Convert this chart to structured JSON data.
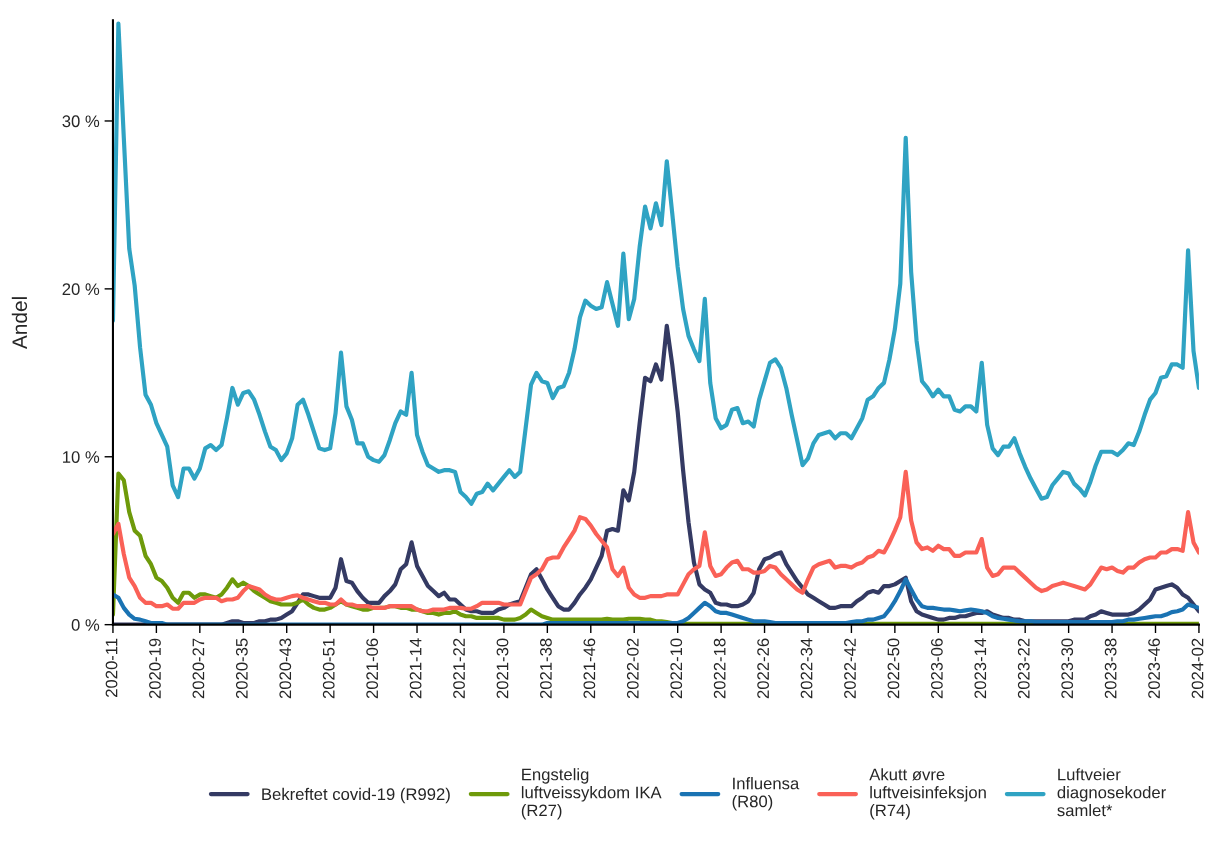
{
  "chart_data": {
    "type": "line",
    "ylabel": "Andel",
    "ylim": [
      0,
      36
    ],
    "grid": false,
    "legend": "bottom",
    "categories": [
      "2020-11",
      null,
      null,
      null,
      null,
      null,
      null,
      null,
      "2020-19",
      null,
      null,
      null,
      null,
      null,
      null,
      null,
      "2020-27",
      null,
      null,
      null,
      null,
      null,
      null,
      null,
      "2020-35",
      null,
      null,
      null,
      null,
      null,
      null,
      null,
      "2020-43",
      null,
      null,
      null,
      null,
      null,
      null,
      null,
      "2020-51",
      null,
      null,
      null,
      null,
      null,
      null,
      null,
      "2021-06",
      null,
      null,
      null,
      null,
      null,
      null,
      null,
      "2021-14",
      null,
      null,
      null,
      null,
      null,
      null,
      null,
      "2021-22",
      null,
      null,
      null,
      null,
      null,
      null,
      null,
      "2021-30",
      null,
      null,
      null,
      null,
      null,
      null,
      null,
      "2021-38",
      null,
      null,
      null,
      null,
      null,
      null,
      null,
      "2021-46",
      null,
      null,
      null,
      null,
      null,
      null,
      null,
      "2022-02",
      null,
      null,
      null,
      null,
      null,
      null,
      null,
      "2022-10",
      null,
      null,
      null,
      null,
      null,
      null,
      null,
      "2022-18",
      null,
      null,
      null,
      null,
      null,
      null,
      null,
      "2022-26",
      null,
      null,
      null,
      null,
      null,
      null,
      null,
      "2022-34",
      null,
      null,
      null,
      null,
      null,
      null,
      null,
      "2022-42",
      null,
      null,
      null,
      null,
      null,
      null,
      null,
      "2022-50",
      null,
      null,
      null,
      null,
      null,
      null,
      null,
      "2023-06",
      null,
      null,
      null,
      null,
      null,
      null,
      null,
      "2023-14",
      null,
      null,
      null,
      null,
      null,
      null,
      null,
      "2023-22",
      null,
      null,
      null,
      null,
      null,
      null,
      null,
      "2023-30",
      null,
      null,
      null,
      null,
      null,
      null,
      null,
      "2023-38",
      null,
      null,
      null,
      null,
      null,
      null,
      null,
      "2023-46",
      null,
      null,
      null,
      null,
      null,
      null,
      null,
      "2024-02"
    ],
    "yticks": [
      {
        "value": 0,
        "label": "0 %"
      },
      {
        "value": 10,
        "label": "10 %"
      },
      {
        "value": 20,
        "label": "20 %"
      },
      {
        "value": 30,
        "label": "30 %"
      }
    ],
    "series": [
      {
        "name": "Bekreftet covid-19 (R992)",
        "color": "#343a63",
        "values": [
          0,
          0,
          0,
          0,
          0,
          0,
          0,
          0,
          0,
          0,
          0,
          0,
          0,
          0,
          0,
          0,
          0,
          0,
          0,
          0,
          0,
          0.1,
          0.2,
          0.2,
          0.1,
          0.1,
          0.1,
          0.2,
          0.2,
          0.3,
          0.3,
          0.4,
          0.6,
          0.8,
          1.3,
          1.8,
          1.8,
          1.7,
          1.6,
          1.6,
          1.6,
          2.2,
          3.9,
          2.6,
          2.5,
          2.0,
          1.6,
          1.3,
          1.3,
          1.3,
          1.7,
          2.0,
          2.4,
          3.3,
          3.6,
          4.9,
          3.5,
          2.9,
          2.3,
          2.0,
          1.7,
          1.9,
          1.5,
          1.5,
          1.2,
          0.9,
          0.8,
          0.8,
          0.7,
          0.7,
          0.7,
          0.9,
          1.0,
          1.2,
          1.3,
          1.4,
          2.2,
          3.0,
          3.3,
          2.7,
          2.1,
          1.6,
          1.1,
          0.9,
          0.9,
          1.3,
          1.8,
          2.2,
          2.7,
          3.4,
          4.1,
          5.6,
          5.7,
          5.6,
          8.0,
          7.4,
          9.1,
          12.0,
          14.7,
          14.5,
          15.5,
          14.6,
          17.8,
          15.5,
          12.7,
          9.2,
          6.1,
          3.7,
          2.4,
          2.1,
          1.9,
          1.3,
          1.2,
          1.2,
          1.1,
          1.1,
          1.2,
          1.4,
          1.9,
          3.3,
          3.9,
          4.0,
          4.2,
          4.3,
          3.6,
          3.1,
          2.6,
          2.2,
          1.8,
          1.6,
          1.4,
          1.2,
          1.0,
          1.0,
          1.1,
          1.1,
          1.1,
          1.4,
          1.6,
          1.9,
          2.0,
          1.9,
          2.3,
          2.3,
          2.4,
          2.6,
          2.8,
          1.4,
          0.8,
          0.6,
          0.5,
          0.4,
          0.3,
          0.3,
          0.4,
          0.4,
          0.5,
          0.5,
          0.6,
          0.7,
          0.7,
          0.8,
          0.6,
          0.5,
          0.4,
          0.4,
          0.3,
          0.3,
          0.2,
          0.2,
          0.2,
          0.2,
          0.2,
          0.2,
          0.2,
          0.2,
          0.2,
          0.3,
          0.3,
          0.3,
          0.5,
          0.6,
          0.8,
          0.7,
          0.6,
          0.6,
          0.6,
          0.6,
          0.7,
          0.9,
          1.2,
          1.5,
          2.1,
          2.2,
          2.3,
          2.4,
          2.2,
          1.8,
          1.6,
          1.2,
          0.8
        ]
      },
      {
        "name": "Engstelig\nluftveissykdom IKA\n(R27)",
        "color": "#6e9a0a",
        "values": [
          0.6,
          9.0,
          8.6,
          6.7,
          5.6,
          5.3,
          4.1,
          3.6,
          2.8,
          2.6,
          2.2,
          1.6,
          1.3,
          1.9,
          1.9,
          1.6,
          1.8,
          1.8,
          1.7,
          1.6,
          1.8,
          2.2,
          2.7,
          2.3,
          2.5,
          2.3,
          2.0,
          1.8,
          1.6,
          1.4,
          1.3,
          1.2,
          1.2,
          1.2,
          1.3,
          1.5,
          1.2,
          1.0,
          0.9,
          0.9,
          1.0,
          1.2,
          1.4,
          1.2,
          1.1,
          1.0,
          0.9,
          0.9,
          1.0,
          1.0,
          1.0,
          1.1,
          1.1,
          1.0,
          1.0,
          0.9,
          0.9,
          0.8,
          0.7,
          0.7,
          0.6,
          0.7,
          0.7,
          0.8,
          0.6,
          0.5,
          0.5,
          0.4,
          0.4,
          0.4,
          0.4,
          0.4,
          0.3,
          0.3,
          0.3,
          0.4,
          0.6,
          0.9,
          0.7,
          0.5,
          0.4,
          0.3,
          0.3,
          0.3,
          0.3,
          0.3,
          0.3,
          0.3,
          0.3,
          0.3,
          0.3,
          0.35,
          0.3,
          0.3,
          0.3,
          0.35,
          0.35,
          0.35,
          0.3,
          0.3,
          0.2,
          0.2,
          0.15,
          0.1,
          0.1,
          0.05,
          0.05,
          0.05,
          0.05,
          0.05,
          0.05,
          0.05,
          0.05,
          0.05,
          0.05,
          0.05,
          0.05,
          0.05,
          0.05,
          0.05,
          0.05,
          0.05,
          0.05,
          0.05,
          0.05,
          0.05,
          0.05,
          0.05,
          0.05,
          0.05,
          0.05,
          0.05,
          0.05,
          0.05,
          0.05,
          0.05,
          0.05,
          0.05,
          0.05,
          0.05,
          0.05,
          0.05,
          0.05,
          0.05,
          0.05,
          0.05,
          0.05,
          0.05,
          0.05,
          0.05,
          0.05,
          0.05,
          0.05,
          0.05,
          0.05,
          0.05,
          0.05,
          0.05,
          0.05,
          0.05,
          0.05,
          0.05,
          0.05,
          0.05,
          0.05,
          0.05,
          0.05,
          0.05,
          0.05,
          0.05,
          0.05,
          0.05,
          0.05,
          0.05,
          0.05,
          0.05,
          0.05,
          0.05,
          0.05,
          0.05,
          0.05,
          0.05,
          0.05,
          0.05,
          0.05,
          0.05,
          0.05,
          0.05,
          0.05,
          0.05,
          0.05,
          0.05,
          0.05,
          0.05,
          0.05,
          0.05,
          0.05,
          0.05,
          0.05,
          0.05,
          0.05
        ]
      },
      {
        "name": "Influensa\n(R80)",
        "color": "#1a73b3",
        "values": [
          1.8,
          1.6,
          1.0,
          0.6,
          0.35,
          0.3,
          0.2,
          0.1,
          0.1,
          0.1,
          0,
          0,
          0,
          0,
          0,
          0,
          0,
          0,
          0,
          0,
          0,
          0,
          0,
          0,
          0,
          0,
          0,
          0,
          0,
          0,
          0,
          0,
          0,
          0,
          0,
          0,
          0,
          0,
          0,
          0,
          0,
          0,
          0,
          0,
          0,
          0,
          0,
          0,
          0,
          0,
          0,
          0,
          0,
          0,
          0,
          0,
          0,
          0,
          0,
          0,
          0,
          0,
          0,
          0,
          0,
          0,
          0,
          0,
          0,
          0,
          0,
          0,
          0,
          0,
          0,
          0,
          0,
          0,
          0,
          0,
          0.1,
          0.1,
          0.1,
          0.1,
          0.1,
          0.1,
          0.1,
          0.1,
          0.1,
          0.1,
          0.1,
          0.1,
          0.1,
          0.1,
          0.1,
          0.1,
          0.1,
          0.1,
          0.1,
          0.1,
          0.1,
          0.1,
          0.1,
          0.1,
          0.1,
          0.2,
          0.4,
          0.7,
          1.0,
          1.3,
          1.1,
          0.8,
          0.7,
          0.7,
          0.6,
          0.5,
          0.4,
          0.3,
          0.2,
          0.2,
          0.2,
          0.15,
          0.1,
          0.1,
          0.1,
          0.1,
          0.1,
          0.1,
          0.1,
          0.1,
          0.1,
          0.1,
          0.1,
          0.1,
          0.1,
          0.1,
          0.15,
          0.2,
          0.2,
          0.3,
          0.3,
          0.4,
          0.5,
          0.9,
          1.4,
          2.0,
          2.7,
          2.1,
          1.5,
          1.1,
          1.0,
          1.0,
          0.95,
          0.9,
          0.9,
          0.85,
          0.8,
          0.85,
          0.9,
          0.85,
          0.8,
          0.7,
          0.5,
          0.4,
          0.35,
          0.3,
          0.25,
          0.2,
          0.2,
          0.2,
          0.15,
          0.15,
          0.15,
          0.15,
          0.15,
          0.15,
          0.15,
          0.15,
          0.15,
          0.15,
          0.15,
          0.15,
          0.15,
          0.15,
          0.15,
          0.2,
          0.2,
          0.3,
          0.3,
          0.35,
          0.4,
          0.45,
          0.5,
          0.5,
          0.6,
          0.75,
          0.8,
          0.9,
          1.2,
          1.1,
          1.0
        ]
      },
      {
        "name": "Akutt øvre\nluftveisinfeksjon\n(R74)",
        "color": "#fa6157",
        "values": [
          5.4,
          6.0,
          4.2,
          2.8,
          2.3,
          1.6,
          1.3,
          1.3,
          1.1,
          1.1,
          1.2,
          0.95,
          0.95,
          1.3,
          1.3,
          1.3,
          1.5,
          1.6,
          1.6,
          1.6,
          1.4,
          1.5,
          1.5,
          1.6,
          2.0,
          2.3,
          2.2,
          2.1,
          1.8,
          1.6,
          1.5,
          1.5,
          1.6,
          1.7,
          1.75,
          1.6,
          1.5,
          1.4,
          1.3,
          1.3,
          1.2,
          1.2,
          1.5,
          1.2,
          1.2,
          1.1,
          1.1,
          1.1,
          1.0,
          1.0,
          1.0,
          1.1,
          1.1,
          1.1,
          1.1,
          1.1,
          0.9,
          0.8,
          0.8,
          0.9,
          0.9,
          0.9,
          1.0,
          1.0,
          1.0,
          0.95,
          0.95,
          1.1,
          1.3,
          1.3,
          1.3,
          1.3,
          1.2,
          1.2,
          1.2,
          1.2,
          2.0,
          2.8,
          3.0,
          3.3,
          3.9,
          4.0,
          4.0,
          4.6,
          5.1,
          5.6,
          6.4,
          6.3,
          5.9,
          5.4,
          5.0,
          4.6,
          3.3,
          2.9,
          3.4,
          2.2,
          1.8,
          1.6,
          1.6,
          1.7,
          1.7,
          1.7,
          1.8,
          1.8,
          1.8,
          2.4,
          3.0,
          3.3,
          3.5,
          5.5,
          3.5,
          2.9,
          3.0,
          3.4,
          3.7,
          3.8,
          3.3,
          3.3,
          3.1,
          3.1,
          3.2,
          3.5,
          3.4,
          3.0,
          2.7,
          2.4,
          2.1,
          1.9,
          2.7,
          3.4,
          3.6,
          3.7,
          3.8,
          3.4,
          3.5,
          3.5,
          3.4,
          3.6,
          3.7,
          4.0,
          4.1,
          4.4,
          4.3,
          4.9,
          5.6,
          6.4,
          9.1,
          6.2,
          4.9,
          4.5,
          4.6,
          4.4,
          4.7,
          4.5,
          4.5,
          4.1,
          4.1,
          4.3,
          4.3,
          4.3,
          5.1,
          3.4,
          2.9,
          3.0,
          3.4,
          3.4,
          3.4,
          3.1,
          2.8,
          2.5,
          2.2,
          2.0,
          2.1,
          2.3,
          2.4,
          2.5,
          2.4,
          2.3,
          2.2,
          2.1,
          2.4,
          2.9,
          3.4,
          3.3,
          3.4,
          3.2,
          3.1,
          3.4,
          3.4,
          3.7,
          3.9,
          4.0,
          4.0,
          4.3,
          4.3,
          4.5,
          4.5,
          4.4,
          6.7,
          4.9,
          4.3
        ]
      },
      {
        "name": "Luftveier\ndiagnosekoder\nsamlet*",
        "color": "#2fa3c3",
        "values": [
          18.1,
          35.8,
          29.0,
          22.4,
          20.2,
          16.5,
          13.7,
          13.1,
          12.0,
          11.3,
          10.6,
          8.3,
          7.6,
          9.3,
          9.3,
          8.7,
          9.3,
          10.5,
          10.7,
          10.4,
          10.7,
          12.3,
          14.1,
          13.1,
          13.8,
          13.9,
          13.4,
          12.5,
          11.5,
          10.6,
          10.4,
          9.8,
          10.2,
          11.1,
          13.1,
          13.4,
          12.5,
          11.5,
          10.5,
          10.4,
          10.5,
          12.6,
          16.2,
          13.0,
          12.2,
          10.8,
          10.8,
          10.0,
          9.8,
          9.7,
          10.1,
          11.0,
          12.0,
          12.7,
          12.5,
          15.0,
          11.3,
          10.3,
          9.5,
          9.3,
          9.1,
          9.2,
          9.2,
          9.1,
          7.9,
          7.6,
          7.2,
          7.8,
          7.9,
          8.4,
          8.0,
          8.4,
          8.8,
          9.2,
          8.8,
          9.1,
          11.7,
          14.3,
          15.0,
          14.5,
          14.4,
          13.5,
          14.1,
          14.2,
          15.0,
          16.4,
          18.3,
          19.3,
          19.0,
          18.8,
          18.9,
          20.4,
          19.1,
          17.8,
          22.1,
          18.2,
          19.4,
          22.5,
          24.9,
          23.6,
          25.1,
          23.8,
          27.6,
          24.5,
          21.3,
          18.8,
          17.2,
          16.4,
          15.7,
          19.4,
          14.4,
          12.3,
          11.7,
          11.9,
          12.8,
          12.9,
          12.0,
          12.1,
          11.8,
          13.4,
          14.5,
          15.6,
          15.8,
          15.3,
          14.1,
          12.5,
          11.0,
          9.5,
          9.9,
          10.8,
          11.3,
          11.4,
          11.5,
          11.1,
          11.4,
          11.4,
          11.1,
          11.7,
          12.3,
          13.4,
          13.6,
          14.1,
          14.4,
          15.8,
          17.6,
          20.3,
          29.0,
          21.0,
          16.9,
          14.5,
          14.1,
          13.6,
          14.0,
          13.6,
          13.6,
          12.8,
          12.7,
          13.0,
          13.0,
          12.7,
          15.6,
          11.9,
          10.5,
          10.1,
          10.6,
          10.6,
          11.1,
          10.2,
          9.4,
          8.7,
          8.1,
          7.5,
          7.6,
          8.3,
          8.7,
          9.1,
          9.0,
          8.4,
          8.1,
          7.7,
          8.5,
          9.5,
          10.3,
          10.3,
          10.3,
          10.1,
          10.4,
          10.8,
          10.7,
          11.5,
          12.5,
          13.4,
          13.8,
          14.7,
          14.8,
          15.5,
          15.5,
          15.3,
          22.3,
          16.3,
          14.1
        ]
      }
    ]
  }
}
